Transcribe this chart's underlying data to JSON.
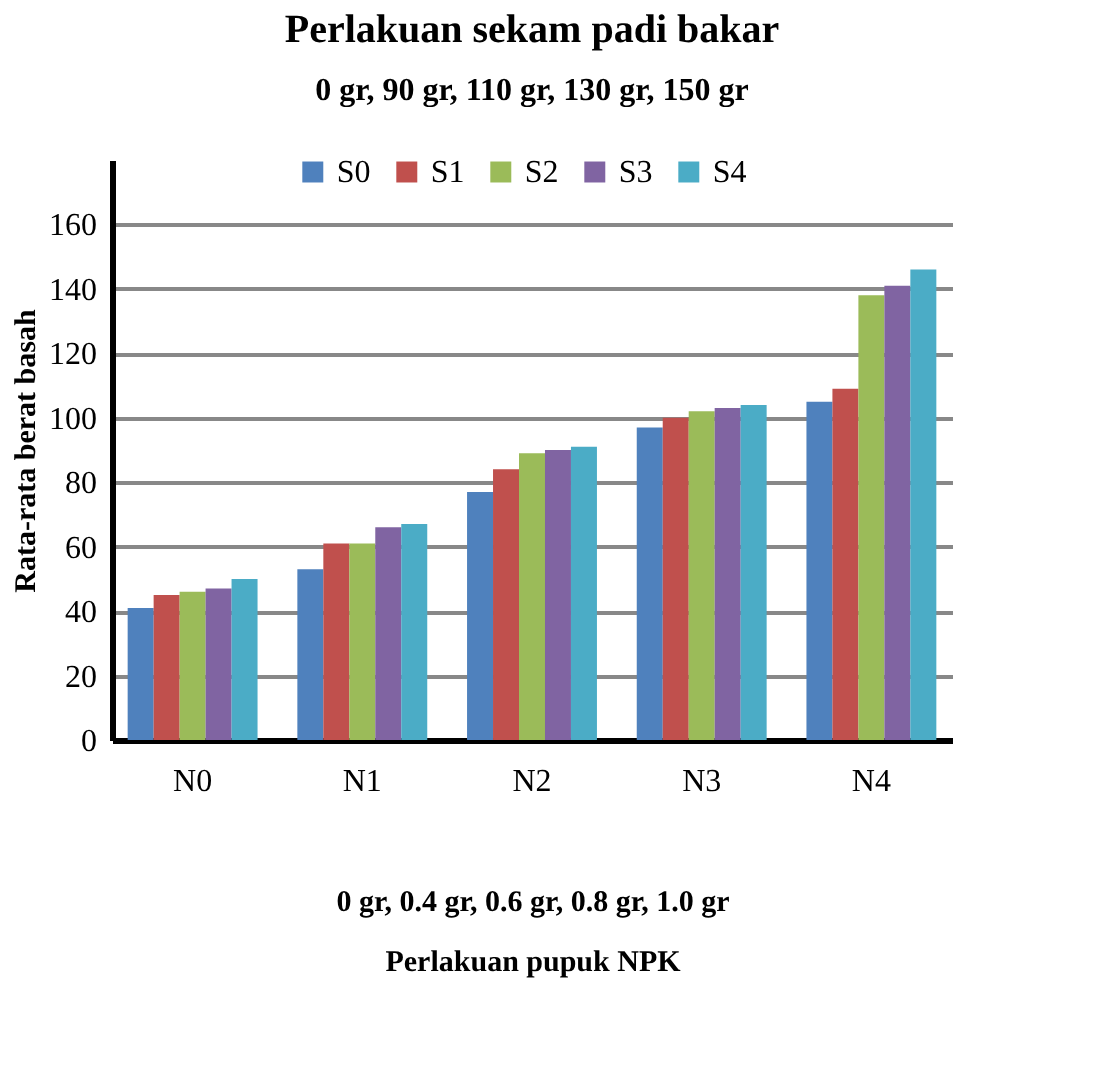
{
  "chart_data": {
    "type": "bar",
    "title": "Perlakuan sekam padi bakar",
    "subtitle": "0 gr, 90 gr, 110 gr, 130 gr, 150 gr",
    "xlabel": "Perlakuan pupuk NPK",
    "ylabel": "Rata-rata berat basah",
    "annotations": [
      "0 gr, 0.4 gr, 0.6 gr, 0.8 gr, 1.0 gr"
    ],
    "categories": [
      "N0",
      "N1",
      "N2",
      "N3",
      "N4"
    ],
    "series": [
      {
        "name": "S0",
        "color": "#4f81bd",
        "values": [
          41,
          53,
          77,
          97,
          105
        ]
      },
      {
        "name": "S1",
        "color": "#c0504d",
        "values": [
          45,
          61,
          84,
          100,
          109
        ]
      },
      {
        "name": "S2",
        "color": "#9bbb59",
        "values": [
          46,
          61,
          89,
          102,
          138
        ]
      },
      {
        "name": "S3",
        "color": "#8064a2",
        "values": [
          47,
          66,
          90,
          103,
          141
        ]
      },
      {
        "name": "S4",
        "color": "#4bacc6",
        "values": [
          50,
          67,
          91,
          104,
          146
        ]
      }
    ],
    "ylim": [
      0,
      180
    ],
    "yticks": [
      0,
      20,
      40,
      60,
      80,
      100,
      120,
      140,
      160
    ],
    "grid": "y",
    "legend": "top"
  }
}
